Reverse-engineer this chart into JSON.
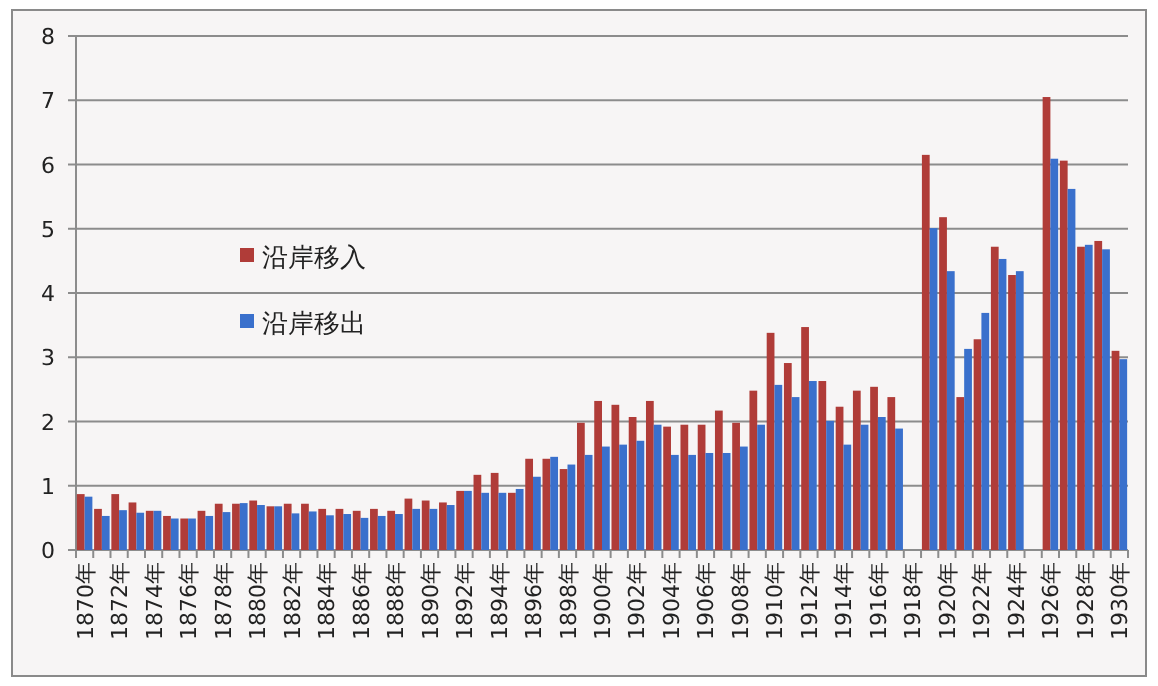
{
  "chart_data": {
    "type": "bar",
    "categories": [
      "1870年",
      null,
      "1872年",
      null,
      "1874年",
      null,
      "1876年",
      null,
      "1878年",
      null,
      "1880年",
      null,
      "1882年",
      null,
      "1884年",
      null,
      "1886年",
      null,
      "1888年",
      null,
      "1890年",
      null,
      "1892年",
      null,
      "1894年",
      null,
      "1896年",
      null,
      "1898年",
      null,
      "1900年",
      null,
      "1902年",
      null,
      "1904年",
      null,
      "1906年",
      null,
      "1908年",
      null,
      "1910年",
      null,
      "1912年",
      null,
      "1914年",
      null,
      "1916年",
      null,
      "1918年",
      null,
      "1920年",
      null,
      "1922年",
      null,
      "1924年",
      null,
      "1926年",
      null,
      "1928年",
      null,
      "1930年"
    ],
    "series": [
      {
        "name": "沿岸移入",
        "color": "#b03c38",
        "values": [
          0.87,
          0.64,
          0.87,
          0.74,
          0.61,
          0.53,
          0.49,
          0.61,
          0.72,
          0.72,
          0.77,
          0.68,
          0.72,
          0.72,
          0.64,
          0.64,
          0.61,
          0.64,
          0.61,
          0.8,
          0.77,
          0.74,
          0.92,
          1.17,
          1.2,
          0.89,
          1.42,
          1.42,
          1.26,
          1.98,
          2.32,
          2.26,
          2.07,
          2.32,
          1.92,
          1.95,
          1.95,
          2.17,
          1.98,
          2.48,
          3.38,
          2.91,
          3.47,
          2.63,
          2.23,
          2.48,
          2.54,
          2.38,
          null,
          6.15,
          5.18,
          2.38,
          3.28,
          4.72,
          4.28,
          null,
          7.05,
          6.06,
          4.72,
          4.81,
          3.1
        ]
      },
      {
        "name": "沿岸移出",
        "color": "#3a70cc",
        "values": [
          0.83,
          0.53,
          0.62,
          0.58,
          0.61,
          0.49,
          0.49,
          0.53,
          0.59,
          0.73,
          0.7,
          0.68,
          0.57,
          0.6,
          0.54,
          0.56,
          0.5,
          0.53,
          0.56,
          0.64,
          0.64,
          0.7,
          0.92,
          0.89,
          0.89,
          0.95,
          1.14,
          1.45,
          1.33,
          1.48,
          1.61,
          1.64,
          1.7,
          1.95,
          1.48,
          1.48,
          1.51,
          1.51,
          1.61,
          1.95,
          2.57,
          2.38,
          2.63,
          2.01,
          1.64,
          1.95,
          2.07,
          1.89,
          null,
          5.01,
          4.34,
          3.13,
          3.69,
          4.53,
          4.34,
          null,
          6.09,
          5.62,
          4.75,
          4.68,
          2.97
        ]
      }
    ],
    "ylim": [
      0,
      8
    ],
    "yticks": [
      0,
      1,
      2,
      3,
      4,
      5,
      6,
      7,
      8
    ],
    "grid": "y",
    "legend": "left"
  }
}
